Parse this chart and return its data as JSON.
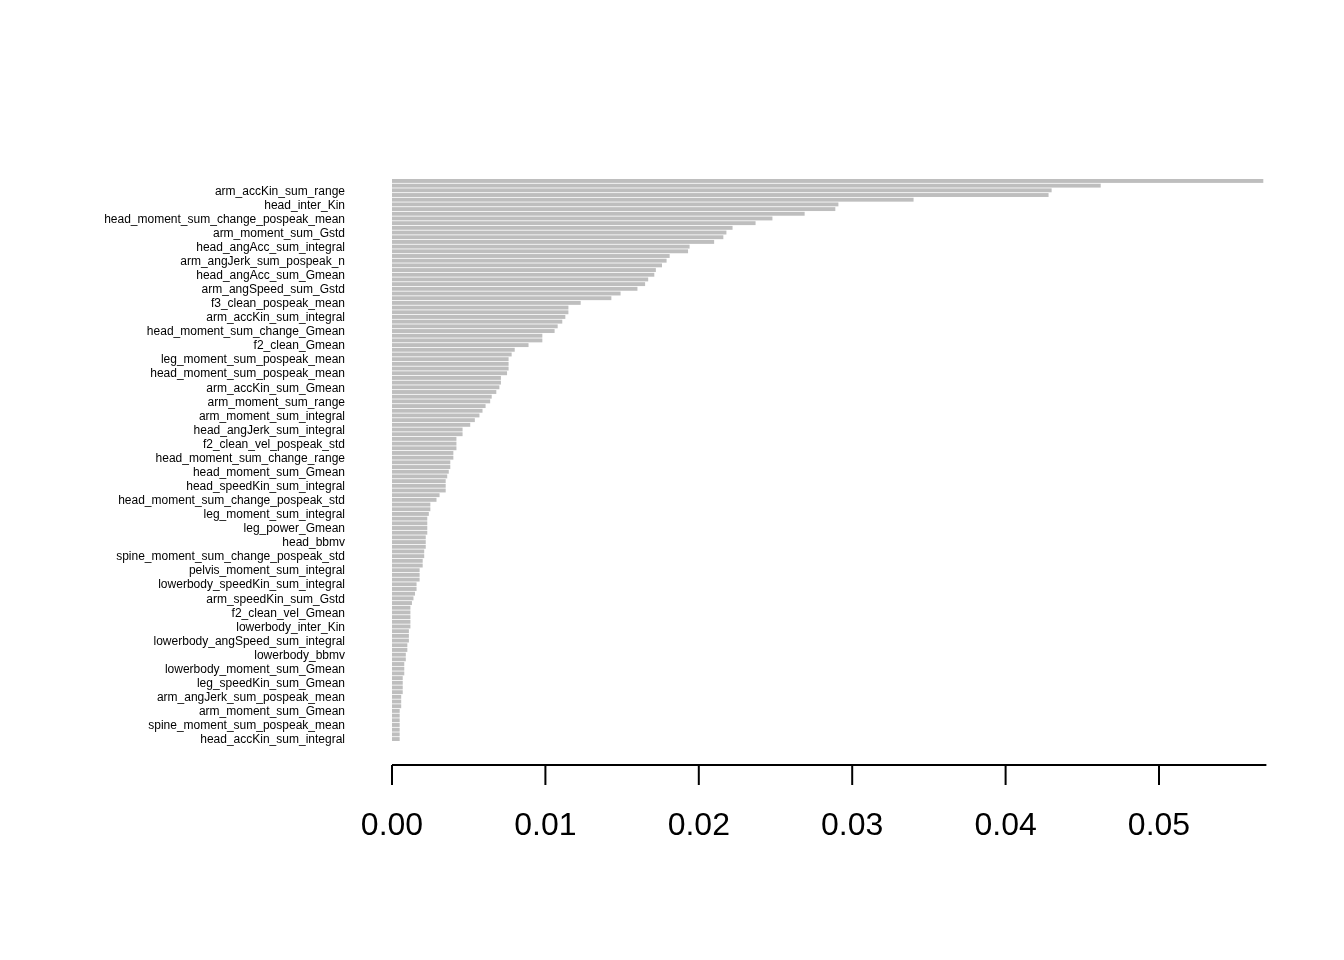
{
  "chart_data": {
    "type": "bar",
    "orientation": "horizontal",
    "color": "#bebebe",
    "categories": [
      null,
      null,
      "arm_accKin_sum_range",
      null,
      null,
      "head_inter_Kin",
      null,
      null,
      "head_moment_sum_change_pospeak_mean",
      null,
      null,
      "arm_moment_sum_Gstd",
      null,
      null,
      "head_angAcc_sum_integral",
      null,
      null,
      "arm_angJerk_sum_pospeak_n",
      null,
      null,
      "head_angAcc_sum_Gmean",
      null,
      null,
      "arm_angSpeed_sum_Gstd",
      null,
      null,
      "f3_clean_pospeak_mean",
      null,
      null,
      "arm_accKin_sum_integral",
      null,
      null,
      "head_moment_sum_change_Gmean",
      null,
      null,
      "f2_clean_Gmean",
      null,
      null,
      "leg_moment_sum_pospeak_mean",
      null,
      null,
      "head_moment_sum_pospeak_mean",
      null,
      null,
      "arm_accKin_sum_Gmean",
      null,
      null,
      "arm_moment_sum_range",
      null,
      null,
      "arm_moment_sum_integral",
      null,
      null,
      "head_angJerk_sum_integral",
      null,
      null,
      "f2_clean_vel_pospeak_std",
      null,
      null,
      "head_moment_sum_change_range",
      null,
      null,
      "head_moment_sum_Gmean",
      null,
      null,
      "head_speedKin_sum_integral",
      null,
      null,
      "head_moment_sum_change_pospeak_std",
      null,
      null,
      "leg_moment_sum_integral",
      null,
      null,
      "leg_power_Gmean",
      null,
      null,
      "head_bbmv",
      null,
      null,
      "spine_moment_sum_change_pospeak_std",
      null,
      null,
      "pelvis_moment_sum_integral",
      null,
      null,
      "lowerbody_speedKin_sum_integral",
      null,
      null,
      "arm_speedKin_sum_Gstd",
      null,
      null,
      "f2_clean_vel_Gmean",
      null,
      null,
      "lowerbody_inter_Kin",
      null,
      null,
      "lowerbody_angSpeed_sum_integral",
      null,
      null,
      "lowerbody_bbmv",
      null,
      null,
      "lowerbody_moment_sum_Gmean",
      null,
      null,
      "leg_speedKin_sum_Gmean",
      null,
      null,
      "arm_angJerk_sum_pospeak_mean",
      null,
      null,
      "arm_moment_sum_Gmean",
      null,
      null,
      "spine_moment_sum_pospeak_mean",
      null,
      null,
      "head_accKin_sum_integral"
    ],
    "values": [
      0.0568,
      0.0462,
      0.043,
      0.0428,
      0.034,
      0.0291,
      0.0289,
      0.0269,
      0.0248,
      0.0237,
      0.0222,
      0.0218,
      0.0216,
      0.021,
      0.0194,
      0.0193,
      0.0181,
      0.0179,
      0.0176,
      0.0172,
      0.0171,
      0.0167,
      0.0165,
      0.016,
      0.0149,
      0.0143,
      0.0123,
      0.0115,
      0.0115,
      0.0113,
      0.0111,
      0.0108,
      0.0106,
      0.0098,
      0.0098,
      0.0089,
      0.008,
      0.0078,
      0.0076,
      0.0076,
      0.0076,
      0.0075,
      0.0071,
      0.0071,
      0.007,
      0.0068,
      0.0065,
      0.0064,
      0.0061,
      0.0059,
      0.0057,
      0.0054,
      0.0051,
      0.0046,
      0.0046,
      0.0042,
      0.0042,
      0.0042,
      0.004,
      0.004,
      0.0038,
      0.0038,
      0.0037,
      0.0036,
      0.0035,
      0.0035,
      0.0035,
      0.0031,
      0.0029,
      0.0025,
      0.0025,
      0.0024,
      0.0023,
      0.0023,
      0.0023,
      0.0023,
      0.0022,
      0.0022,
      0.0022,
      0.0021,
      0.0021,
      0.002,
      0.002,
      0.0018,
      0.0018,
      0.0018,
      0.0016,
      0.0016,
      0.0015,
      0.0014,
      0.0013,
      0.0012,
      0.0012,
      0.0012,
      0.0012,
      0.0012,
      0.0011,
      0.0011,
      0.0011,
      0.001,
      0.001,
      0.0009,
      0.0009,
      0.0008,
      0.0008,
      0.0008,
      0.0007,
      0.0007,
      0.0007,
      0.0007,
      0.0006,
      0.0006,
      0.0006,
      0.0005,
      0.0005,
      0.0005,
      0.0005,
      0.0005,
      0.0005,
      0.0005
    ],
    "xlim": [
      0,
      0.057
    ],
    "xticks": [
      {
        "value": 0,
        "label": "0.00"
      },
      {
        "value": 0.01,
        "label": "0.01"
      },
      {
        "value": 0.02,
        "label": "0.02"
      },
      {
        "value": 0.03,
        "label": "0.03"
      },
      {
        "value": 0.04,
        "label": "0.04"
      },
      {
        "value": 0.05,
        "label": "0.05"
      }
    ]
  }
}
